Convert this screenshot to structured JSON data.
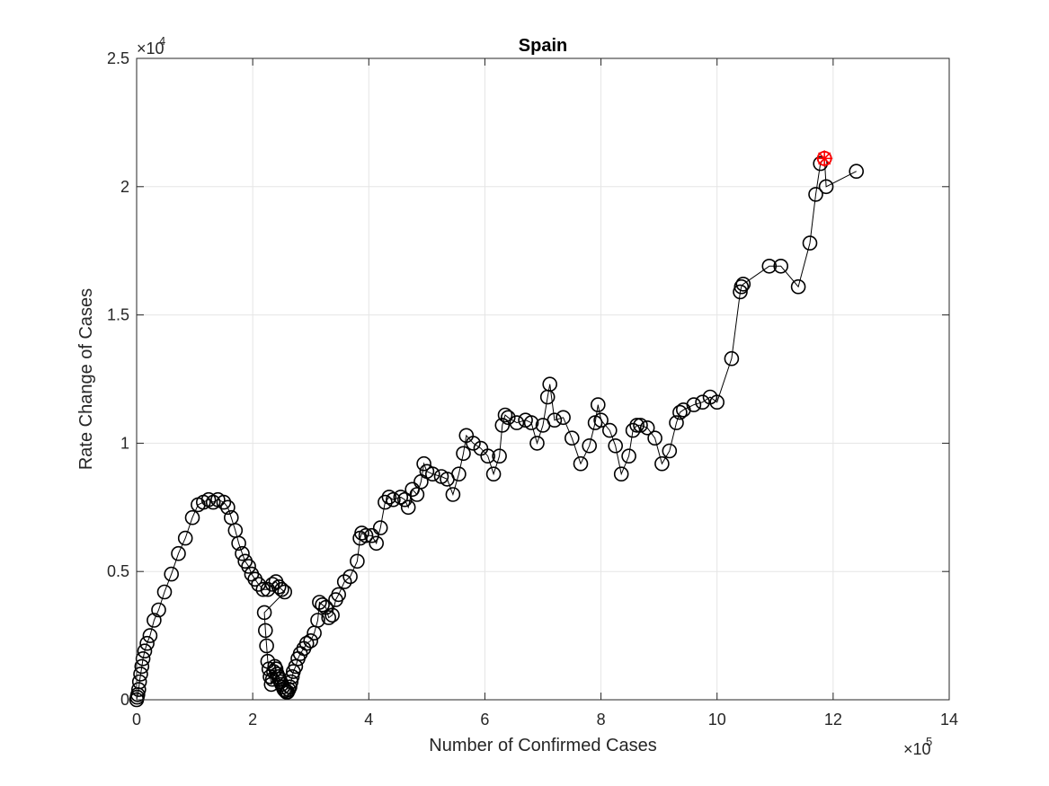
{
  "chart_data": {
    "type": "scatter",
    "title": "Spain",
    "xlabel": "Number of Confirmed Cases",
    "ylabel": "Rate Change of Cases",
    "xlim": [
      0,
      1400000
    ],
    "ylim": [
      0,
      25000
    ],
    "x_ticks": [
      0,
      200000,
      400000,
      600000,
      800000,
      1000000,
      1200000,
      1400000
    ],
    "x_tick_labels": [
      "0",
      "2",
      "4",
      "6",
      "8",
      "10",
      "12",
      "14"
    ],
    "y_ticks": [
      0,
      5000,
      10000,
      15000,
      20000,
      25000
    ],
    "y_tick_labels": [
      "0",
      "0.5",
      "1",
      "1.5",
      "2",
      "2.5"
    ],
    "x_multiplier": {
      "base": "×10",
      "exponent": "5"
    },
    "y_multiplier": {
      "base": "×10",
      "exponent": "4"
    },
    "grid": true,
    "marker": "circle",
    "connect_points": true,
    "series_color": "#000000",
    "highlight_color": "#ff0000",
    "highlight_point": {
      "x": 1185000,
      "y": 21100
    },
    "series": [
      {
        "points": [
          [
            0,
            0
          ],
          [
            1000,
            100
          ],
          [
            2000,
            200
          ],
          [
            3500,
            400
          ],
          [
            5000,
            700
          ],
          [
            7000,
            1000
          ],
          [
            9000,
            1300
          ],
          [
            11000,
            1600
          ],
          [
            14000,
            1900
          ],
          [
            18000,
            2200
          ],
          [
            23000,
            2500
          ],
          [
            30000,
            3100
          ],
          [
            38000,
            3500
          ],
          [
            48000,
            4200
          ],
          [
            60000,
            4900
          ],
          [
            72000,
            5700
          ],
          [
            84000,
            6300
          ],
          [
            96000,
            7100
          ],
          [
            106000,
            7600
          ],
          [
            115000,
            7700
          ],
          [
            124000,
            7800
          ],
          [
            132000,
            7700
          ],
          [
            140000,
            7800
          ],
          [
            150000,
            7700
          ],
          [
            157000,
            7500
          ],
          [
            163000,
            7100
          ],
          [
            170000,
            6600
          ],
          [
            176000,
            6100
          ],
          [
            182000,
            5700
          ],
          [
            187000,
            5400
          ],
          [
            193000,
            5200
          ],
          [
            198000,
            4900
          ],
          [
            204000,
            4700
          ],
          [
            210000,
            4500
          ],
          [
            218000,
            4300
          ],
          [
            226000,
            4300
          ],
          [
            234000,
            4500
          ],
          [
            240000,
            4600
          ],
          [
            245000,
            4400
          ],
          [
            250000,
            4300
          ],
          [
            255000,
            4200
          ],
          [
            220000,
            3400
          ],
          [
            222000,
            2700
          ],
          [
            224000,
            2100
          ],
          [
            226000,
            1500
          ],
          [
            228000,
            1200
          ],
          [
            230000,
            900
          ],
          [
            232000,
            600
          ],
          [
            234000,
            800
          ],
          [
            236000,
            1100
          ],
          [
            238000,
            1300
          ],
          [
            240000,
            1200
          ],
          [
            242000,
            1000
          ],
          [
            244000,
            900
          ],
          [
            246000,
            800
          ],
          [
            248000,
            700
          ],
          [
            250000,
            600
          ],
          [
            252000,
            500
          ],
          [
            254000,
            400
          ],
          [
            256000,
            350
          ],
          [
            258000,
            300
          ],
          [
            260000,
            300
          ],
          [
            262000,
            400
          ],
          [
            264000,
            500
          ],
          [
            266000,
            700
          ],
          [
            268000,
            900
          ],
          [
            270000,
            1100
          ],
          [
            274000,
            1300
          ],
          [
            278000,
            1600
          ],
          [
            282000,
            1800
          ],
          [
            288000,
            2000
          ],
          [
            293000,
            2200
          ],
          [
            300000,
            2300
          ],
          [
            306000,
            2600
          ],
          [
            312000,
            3100
          ],
          [
            315000,
            3800
          ],
          [
            320000,
            3700
          ],
          [
            326000,
            3600
          ],
          [
            331000,
            3200
          ],
          [
            337000,
            3300
          ],
          [
            343000,
            3900
          ],
          [
            348000,
            4100
          ],
          [
            358000,
            4600
          ],
          [
            368000,
            4800
          ],
          [
            380000,
            5400
          ],
          [
            385000,
            6300
          ],
          [
            388000,
            6500
          ],
          [
            395000,
            6400
          ],
          [
            405000,
            6400
          ],
          [
            413000,
            6100
          ],
          [
            420000,
            6700
          ],
          [
            428000,
            7700
          ],
          [
            435000,
            7900
          ],
          [
            442000,
            7800
          ],
          [
            455000,
            7900
          ],
          [
            462000,
            7800
          ],
          [
            468000,
            7500
          ],
          [
            475000,
            8200
          ],
          [
            483000,
            8000
          ],
          [
            490000,
            8500
          ],
          [
            495000,
            9200
          ],
          [
            500000,
            8900
          ],
          [
            510000,
            8800
          ],
          [
            525000,
            8700
          ],
          [
            535000,
            8600
          ],
          [
            545000,
            8000
          ],
          [
            555000,
            8800
          ],
          [
            563000,
            9600
          ],
          [
            568000,
            10300
          ],
          [
            580000,
            10000
          ],
          [
            593000,
            9800
          ],
          [
            605000,
            9500
          ],
          [
            615000,
            8800
          ],
          [
            625000,
            9500
          ],
          [
            630000,
            10700
          ],
          [
            635000,
            11100
          ],
          [
            640000,
            11000
          ],
          [
            655000,
            10800
          ],
          [
            670000,
            10900
          ],
          [
            680000,
            10800
          ],
          [
            690000,
            10000
          ],
          [
            700000,
            10700
          ],
          [
            708000,
            11800
          ],
          [
            712000,
            12300
          ],
          [
            720000,
            10900
          ],
          [
            735000,
            11000
          ],
          [
            750000,
            10200
          ],
          [
            765000,
            9200
          ],
          [
            780000,
            9900
          ],
          [
            790000,
            10800
          ],
          [
            795000,
            11500
          ],
          [
            800000,
            10900
          ],
          [
            815000,
            10500
          ],
          [
            825000,
            9900
          ],
          [
            835000,
            8800
          ],
          [
            848000,
            9500
          ],
          [
            855000,
            10500
          ],
          [
            862000,
            10700
          ],
          [
            868000,
            10700
          ],
          [
            880000,
            10600
          ],
          [
            893000,
            10200
          ],
          [
            905000,
            9200
          ],
          [
            918000,
            9700
          ],
          [
            930000,
            10800
          ],
          [
            936000,
            11200
          ],
          [
            942000,
            11300
          ],
          [
            960000,
            11500
          ],
          [
            975000,
            11600
          ],
          [
            988000,
            11800
          ],
          [
            1000000,
            11600
          ],
          [
            1025000,
            13300
          ],
          [
            1040000,
            15900
          ],
          [
            1042000,
            16100
          ],
          [
            1045000,
            16200
          ],
          [
            1090000,
            16900
          ],
          [
            1110000,
            16900
          ],
          [
            1140000,
            16100
          ],
          [
            1160000,
            17800
          ],
          [
            1170000,
            19700
          ],
          [
            1178000,
            20900
          ],
          [
            1185000,
            21100
          ],
          [
            1188000,
            20000
          ],
          [
            1240000,
            20600
          ]
        ]
      }
    ]
  }
}
